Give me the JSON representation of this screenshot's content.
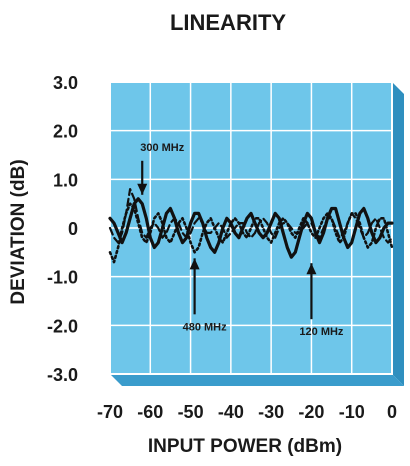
{
  "chart_data": {
    "type": "line",
    "title": "LINEARITY",
    "xlabel": "INPUT POWER (dBm)",
    "ylabel": "DEVIATION (dB)",
    "xlim": [
      -70,
      0
    ],
    "ylim": [
      -3.0,
      3.0
    ],
    "xticks": [
      "-70",
      "-60",
      "-50",
      "-40",
      "-30",
      "-20",
      "-10",
      "0"
    ],
    "yticks": [
      "3.0",
      "2.0",
      "1.0",
      "0",
      "-1.0",
      "-2.0",
      "-3.0"
    ],
    "grid": true,
    "colors": {
      "plot_bg": "#6ec6ea",
      "grid": "#ffffff",
      "frame_shadow": "#2f8fbf",
      "line": "#111111"
    },
    "series": [
      {
        "style": "solid",
        "x": [
          -70,
          -69,
          -68,
          -67,
          -66,
          -65,
          -64,
          -63,
          -62,
          -61,
          -60,
          -59,
          -58,
          -57,
          -56,
          -55,
          -54,
          -53,
          -52,
          -51,
          -50,
          -49,
          -48,
          -47,
          -46,
          -45,
          -44,
          -43,
          -42,
          -41,
          -40,
          -39,
          -38,
          -37,
          -36,
          -35,
          -34,
          -33,
          -32,
          -31,
          -30,
          -29,
          -28,
          -27,
          -26,
          -25,
          -24,
          -23,
          -22,
          -21,
          -20,
          -19,
          -18,
          -17,
          -16,
          -15,
          -14,
          -13,
          -12,
          -11,
          -10,
          -9,
          -8,
          -7,
          -6,
          -5,
          -4,
          -3,
          -2,
          -1,
          0
        ],
        "y": [
          0.2,
          0.1,
          -0.1,
          -0.3,
          -0.1,
          0.2,
          0.5,
          0.6,
          0.5,
          0.2,
          -0.2,
          -0.4,
          -0.3,
          0.0,
          0.3,
          0.4,
          0.2,
          -0.1,
          -0.3,
          -0.2,
          0.1,
          0.3,
          0.3,
          0.1,
          -0.2,
          -0.4,
          -0.5,
          -0.3,
          0.0,
          0.2,
          0.1,
          -0.1,
          -0.2,
          0.0,
          0.2,
          0.3,
          0.1,
          -0.1,
          -0.2,
          -0.1,
          0.1,
          0.3,
          0.2,
          -0.1,
          -0.4,
          -0.6,
          -0.5,
          -0.2,
          0.1,
          0.3,
          0.2,
          -0.1,
          -0.3,
          -0.1,
          0.2,
          0.4,
          0.4,
          0.1,
          -0.2,
          -0.4,
          -0.3,
          0.0,
          0.3,
          0.4,
          0.2,
          -0.1,
          -0.3,
          -0.2,
          0.0,
          0.1,
          0.1
        ]
      },
      {
        "style": "dotted",
        "x": [
          -70,
          -69,
          -68,
          -67,
          -66,
          -65,
          -64,
          -63,
          -62,
          -61,
          -60,
          -59,
          -58,
          -57,
          -56,
          -55,
          -54,
          -53,
          -52,
          -51,
          -50,
          -49,
          -48,
          -47,
          -46,
          -45,
          -44,
          -43,
          -42,
          -41,
          -40,
          -39,
          -38,
          -37,
          -36,
          -35,
          -34,
          -33,
          -32,
          -31,
          -30,
          -29,
          -28,
          -27,
          -26,
          -25,
          -24,
          -23,
          -22,
          -21,
          -20,
          -19,
          -18,
          -17,
          -16,
          -15,
          -14,
          -13,
          -12,
          -11,
          -10,
          -9,
          -8,
          -7,
          -6,
          -5,
          -4,
          -3,
          -2,
          -1,
          0
        ],
        "y": [
          -0.5,
          -0.7,
          -0.4,
          0.0,
          0.3,
          0.5,
          0.4,
          0.1,
          -0.2,
          -0.3,
          -0.1,
          0.2,
          0.3,
          0.1,
          -0.2,
          -0.3,
          -0.1,
          0.1,
          0.2,
          0.0,
          -0.3,
          -0.5,
          -0.4,
          -0.1,
          0.1,
          0.2,
          0.0,
          -0.2,
          -0.3,
          -0.1,
          0.1,
          0.2,
          0.1,
          -0.1,
          -0.2,
          0.0,
          0.2,
          0.2,
          0.0,
          -0.2,
          -0.3,
          -0.1,
          0.1,
          0.2,
          0.1,
          -0.1,
          -0.2,
          0.0,
          0.2,
          0.1,
          -0.1,
          -0.2,
          0.0,
          0.2,
          0.3,
          0.2,
          -0.1,
          -0.3,
          -0.2,
          0.1,
          0.3,
          0.3,
          0.1,
          -0.2,
          -0.4,
          -0.3,
          0.0,
          0.2,
          0.2,
          -0.1,
          -0.4
        ]
      },
      {
        "style": "dashed",
        "x": [
          -70,
          -69,
          -68,
          -67,
          -66,
          -65,
          -64,
          -63,
          -62,
          -61,
          -60,
          -59,
          -58,
          -57,
          -56,
          -55,
          -54,
          -53,
          -52,
          -51,
          -50,
          -49,
          -48,
          -47,
          -46,
          -45,
          -44,
          -43,
          -42,
          -41,
          -40,
          -39,
          -38,
          -37,
          -36,
          -35,
          -34,
          -33,
          -32,
          -31,
          -30,
          -29,
          -28,
          -27,
          -26,
          -25,
          -24,
          -23,
          -22,
          -21,
          -20,
          -19,
          -18,
          -17,
          -16,
          -15,
          -14,
          -13,
          -12,
          -11,
          -10,
          -9,
          -8,
          -7,
          -6,
          -5,
          -4,
          -3,
          -2,
          -1,
          0
        ],
        "y": [
          0.0,
          -0.2,
          -0.3,
          -0.1,
          0.3,
          0.8,
          0.6,
          0.2,
          -0.1,
          -0.2,
          0.0,
          0.1,
          0.0,
          -0.2,
          -0.1,
          0.1,
          0.2,
          0.1,
          -0.1,
          -0.2,
          -0.1,
          0.1,
          0.2,
          0.1,
          -0.1,
          -0.1,
          0.0,
          0.1,
          0.0,
          -0.2,
          -0.1,
          0.0,
          0.1,
          0.1,
          -0.1,
          -0.2,
          -0.1,
          0.1,
          0.2,
          0.1,
          -0.1,
          -0.2,
          0.0,
          0.1,
          0.1,
          0.0,
          -0.1,
          -0.1,
          0.0,
          0.1,
          0.1,
          -0.1,
          -0.2,
          0.0,
          0.2,
          0.2,
          0.0,
          -0.2,
          -0.1,
          0.1,
          0.3,
          0.2,
          0.0,
          -0.2,
          -0.1,
          0.1,
          0.2,
          0.0,
          -0.2,
          -0.3,
          -0.2
        ]
      }
    ],
    "annotations": [
      {
        "text": "300 MHz",
        "x": -62,
        "y": 0.6,
        "pointer": "down"
      },
      {
        "text": "480 MHz",
        "x": -49,
        "y": -0.5,
        "pointer": "up"
      },
      {
        "text": "120 MHz",
        "x": -20,
        "y": -0.6,
        "pointer": "up"
      }
    ]
  }
}
